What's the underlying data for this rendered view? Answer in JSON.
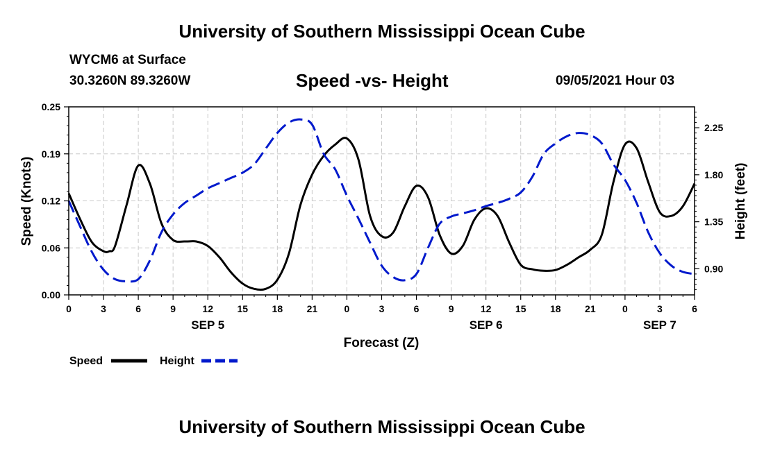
{
  "page": {
    "header_title": "University of Southern Mississippi Ocean Cube",
    "footer_title": "University of Southern Mississippi Ocean Cube",
    "station": "WYCM6 at Surface",
    "coordinates": "30.3260N  89.3260W",
    "date": "09/05/2021 Hour 03"
  },
  "chart_data": {
    "type": "line",
    "title": "Speed -vs- Height",
    "xlabel": "Forecast (Z)",
    "ylabel_left": "Speed (Knots)",
    "ylabel_right": "Height (feet)",
    "x_ticks": [
      "0",
      "3",
      "6",
      "9",
      "12",
      "15",
      "18",
      "21",
      "0",
      "3",
      "6",
      "9",
      "12",
      "15",
      "18",
      "21",
      "0",
      "3",
      "6"
    ],
    "x_hours": [
      0,
      3,
      6,
      9,
      12,
      15,
      18,
      21,
      24,
      27,
      30,
      33,
      36,
      39,
      42,
      45,
      48,
      51,
      54
    ],
    "date_labels": [
      {
        "label": "SEP 5",
        "hour": 12
      },
      {
        "label": "SEP 6",
        "hour": 36
      },
      {
        "label": "SEP 7",
        "hour": 51
      }
    ],
    "y_left": {
      "ticks": [
        "0.00",
        "0.06",
        "0.12",
        "0.19",
        "0.25"
      ],
      "values": [
        0,
        0.0625,
        0.125,
        0.1875,
        0.25
      ],
      "lim": [
        0,
        0.25
      ]
    },
    "y_right": {
      "ticks": [
        "0.90",
        "1.35",
        "1.80",
        "2.25"
      ],
      "values": [
        0.9,
        1.35,
        1.8,
        2.25
      ],
      "lim": [
        0.65,
        2.45
      ]
    },
    "xlim": [
      0,
      54
    ],
    "grid": true,
    "series": [
      {
        "name": "Speed",
        "axis": "left",
        "color": "#000000",
        "dash": "solid",
        "x": [
          0,
          1,
          2,
          3,
          3.5,
          4,
          5,
          6,
          7,
          8,
          9,
          10,
          11,
          12,
          13,
          14,
          15,
          16,
          17,
          18,
          19,
          20,
          21,
          22,
          23,
          24,
          25,
          26,
          27,
          28,
          29,
          30,
          31,
          32,
          33,
          34,
          35,
          36,
          37,
          38,
          39,
          40,
          41,
          42,
          43,
          44,
          45,
          46,
          47,
          48,
          49,
          50,
          51,
          52,
          53,
          54
        ],
        "values": [
          0.135,
          0.1,
          0.07,
          0.058,
          0.058,
          0.065,
          0.12,
          0.172,
          0.148,
          0.095,
          0.073,
          0.071,
          0.071,
          0.065,
          0.05,
          0.03,
          0.015,
          0.008,
          0.008,
          0.02,
          0.055,
          0.12,
          0.16,
          0.185,
          0.2,
          0.208,
          0.18,
          0.105,
          0.078,
          0.083,
          0.118,
          0.145,
          0.13,
          0.08,
          0.055,
          0.065,
          0.1,
          0.115,
          0.105,
          0.07,
          0.04,
          0.034,
          0.032,
          0.033,
          0.04,
          0.05,
          0.06,
          0.08,
          0.15,
          0.2,
          0.195,
          0.15,
          0.11,
          0.105,
          0.118,
          0.148
        ]
      },
      {
        "name": "Height",
        "axis": "right",
        "color": "#0019cc",
        "dash": "dashed",
        "x": [
          0,
          1,
          2,
          3,
          4,
          5,
          6,
          7,
          8,
          9,
          10,
          11,
          12,
          13,
          14,
          15,
          16,
          17,
          18,
          19,
          20,
          21,
          22,
          23,
          24,
          25,
          26,
          27,
          28,
          29,
          30,
          31,
          32,
          33,
          34,
          35,
          36,
          37,
          38,
          39,
          40,
          41,
          42,
          43,
          44,
          45,
          46,
          47,
          48,
          49,
          50,
          51,
          52,
          53,
          54
        ],
        "values": [
          1.55,
          1.3,
          1.06,
          0.89,
          0.8,
          0.78,
          0.8,
          0.98,
          1.25,
          1.42,
          1.53,
          1.6,
          1.67,
          1.72,
          1.77,
          1.82,
          1.9,
          2.05,
          2.2,
          2.3,
          2.33,
          2.28,
          2.0,
          1.85,
          1.6,
          1.38,
          1.15,
          0.93,
          0.82,
          0.79,
          0.85,
          1.1,
          1.33,
          1.4,
          1.43,
          1.46,
          1.5,
          1.53,
          1.57,
          1.63,
          1.78,
          2.0,
          2.1,
          2.17,
          2.2,
          2.18,
          2.1,
          1.9,
          1.75,
          1.53,
          1.25,
          1.05,
          0.93,
          0.87,
          0.85
        ]
      }
    ],
    "legend": [
      {
        "label": "Speed",
        "color": "#000000",
        "dash": "solid"
      },
      {
        "label": "Height",
        "color": "#0019cc",
        "dash": "dashed"
      }
    ],
    "legend_position": "bottom-left"
  }
}
